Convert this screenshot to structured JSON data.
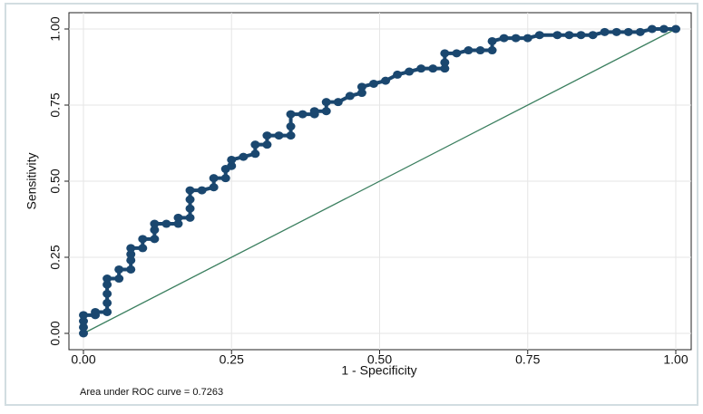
{
  "chart_data": {
    "type": "line",
    "x_label": "1 - Specificity",
    "y_label": "Sensitivity",
    "note": "Area under ROC curve = 0.7263",
    "color": "#1a476f",
    "markers": true,
    "grid": true,
    "x": [
      0,
      0,
      0,
      0,
      0.02,
      0.02,
      0.04,
      0.04,
      0.04,
      0.04,
      0.04,
      0.06,
      0.06,
      0.08,
      0.08,
      0.08,
      0.08,
      0.1,
      0.1,
      0.12,
      0.12,
      0.12,
      0.14,
      0.16,
      0.16,
      0.18,
      0.18,
      0.18,
      0.18,
      0.2,
      0.22,
      0.22,
      0.24,
      0.24,
      0.25,
      0.25,
      0.27,
      0.29,
      0.29,
      0.31,
      0.31,
      0.33,
      0.35,
      0.35,
      0.35,
      0.37,
      0.39,
      0.39,
      0.41,
      0.41,
      0.43,
      0.45,
      0.47,
      0.47,
      0.49,
      0.51,
      0.53,
      0.55,
      0.57,
      0.59,
      0.61,
      0.61,
      0.61,
      0.63,
      0.65,
      0.67,
      0.69,
      0.69,
      0.71,
      0.73,
      0.75,
      0.77,
      0.8,
      0.82,
      0.84,
      0.86,
      0.88,
      0.9,
      0.92,
      0.94,
      0.96,
      0.98,
      1.0
    ],
    "values": [
      0,
      0.02,
      0.04,
      0.06,
      0.06,
      0.07,
      0.07,
      0.1,
      0.13,
      0.16,
      0.18,
      0.18,
      0.21,
      0.21,
      0.24,
      0.26,
      0.28,
      0.28,
      0.31,
      0.31,
      0.34,
      0.36,
      0.36,
      0.36,
      0.38,
      0.38,
      0.41,
      0.44,
      0.47,
      0.47,
      0.48,
      0.51,
      0.51,
      0.54,
      0.55,
      0.57,
      0.58,
      0.59,
      0.62,
      0.62,
      0.65,
      0.65,
      0.65,
      0.68,
      0.72,
      0.72,
      0.72,
      0.73,
      0.73,
      0.76,
      0.76,
      0.78,
      0.79,
      0.81,
      0.82,
      0.83,
      0.85,
      0.86,
      0.87,
      0.87,
      0.87,
      0.89,
      0.92,
      0.92,
      0.93,
      0.93,
      0.93,
      0.96,
      0.97,
      0.97,
      0.97,
      0.98,
      0.98,
      0.98,
      0.98,
      0.98,
      0.99,
      0.99,
      0.99,
      0.99,
      1.0,
      1.0,
      1.0
    ],
    "xlim": [
      0,
      1
    ],
    "ylim": [
      0,
      1
    ],
    "xticks": [
      {
        "value": 0,
        "label": "0.00"
      },
      {
        "value": 0.25,
        "label": "0.25"
      },
      {
        "value": 0.5,
        "label": "0.50"
      },
      {
        "value": 0.75,
        "label": "0.75"
      },
      {
        "value": 1,
        "label": "1.00"
      }
    ],
    "yticks": [
      {
        "value": 0,
        "label": "0.00"
      },
      {
        "value": 0.25,
        "label": "0.25"
      },
      {
        "value": 0.5,
        "label": "0.50"
      },
      {
        "value": 0.75,
        "label": "0.75"
      },
      {
        "value": 1,
        "label": "1.00"
      }
    ]
  }
}
